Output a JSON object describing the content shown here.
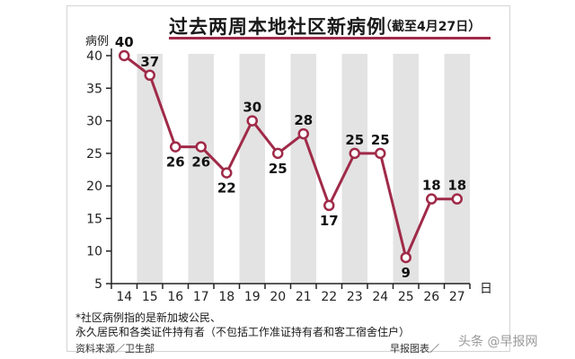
{
  "header": {
    "title": "过去两周本地社区新病例",
    "subtitle": "（截至4月27日）"
  },
  "footnote": {
    "line1": "*社区病例指的是新加坡公民、",
    "line2": "永久居民和各类证件持有者（不包括工作准证持有者和客工宿舍住户）"
  },
  "source": "资料来源／卫生部",
  "credit": "早报图表／",
  "watermark": "头条 @早报网",
  "colors": {
    "line": "#a02a48",
    "band": "#e3e3e3",
    "title_rule": "#a02a48"
  },
  "chart_data": {
    "type": "line",
    "title": "过去两周本地社区新病例",
    "subtitle": "（截至4月27日）",
    "ylabel": "病例",
    "xlabel": "日",
    "categories": [
      "14",
      "15",
      "16",
      "17",
      "18",
      "19",
      "20",
      "21",
      "22",
      "23",
      "24",
      "25",
      "26",
      "27"
    ],
    "values": [
      40,
      37,
      26,
      26,
      22,
      30,
      25,
      28,
      17,
      25,
      25,
      9,
      18,
      18
    ],
    "ylim": [
      5,
      40
    ],
    "yticks": [
      5,
      10,
      15,
      20,
      25,
      30,
      35,
      40
    ],
    "label_position": [
      "above",
      "above",
      "below",
      "below",
      "below",
      "above",
      "below",
      "above",
      "below",
      "above",
      "above",
      "below",
      "above",
      "above"
    ],
    "alternating_bands": true,
    "grid": false
  }
}
